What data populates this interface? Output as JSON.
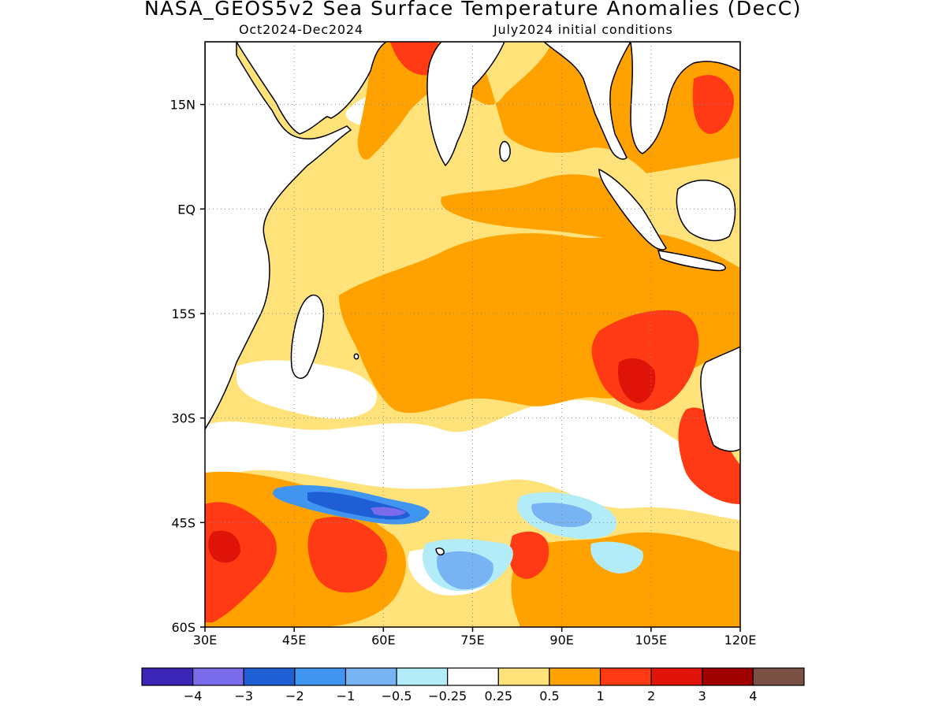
{
  "title": "NASA_GEOS5v2 Sea Surface Temperature Anomalies (DecC)",
  "subtitle_left": "Oct2024-Dec2024",
  "subtitle_right": "July2024 initial conditions",
  "map": {
    "lon_range": [
      30,
      120
    ],
    "lat_range": [
      -60,
      24
    ],
    "x_ticks": [
      {
        "value": 30,
        "label": "30E"
      },
      {
        "value": 45,
        "label": "45E"
      },
      {
        "value": 60,
        "label": "60E"
      },
      {
        "value": 75,
        "label": "75E"
      },
      {
        "value": 90,
        "label": "90E"
      },
      {
        "value": 105,
        "label": "105E"
      },
      {
        "value": 120,
        "label": "120E"
      }
    ],
    "y_ticks": [
      {
        "value": 15,
        "label": "15N"
      },
      {
        "value": 0,
        "label": "EQ"
      },
      {
        "value": -15,
        "label": "15S"
      },
      {
        "value": -30,
        "label": "30S"
      },
      {
        "value": -45,
        "label": "45S"
      },
      {
        "value": -60,
        "label": "60S"
      }
    ],
    "grid": "dotted"
  },
  "colorbar": {
    "colors": [
      "#3a25b6",
      "#7a6bea",
      "#1f5fd6",
      "#3f95f0",
      "#78b4f4",
      "#b2ecf8",
      "#ffffff",
      "#ffe27a",
      "#ffa200",
      "#ff3a14",
      "#df1307",
      "#a10000",
      "#7a4f44"
    ],
    "labels": [
      "−4",
      "−3",
      "−2",
      "−1",
      "−0.5",
      "−0.25",
      "0.25",
      "0.5",
      "1",
      "2",
      "3",
      "4"
    ]
  }
}
